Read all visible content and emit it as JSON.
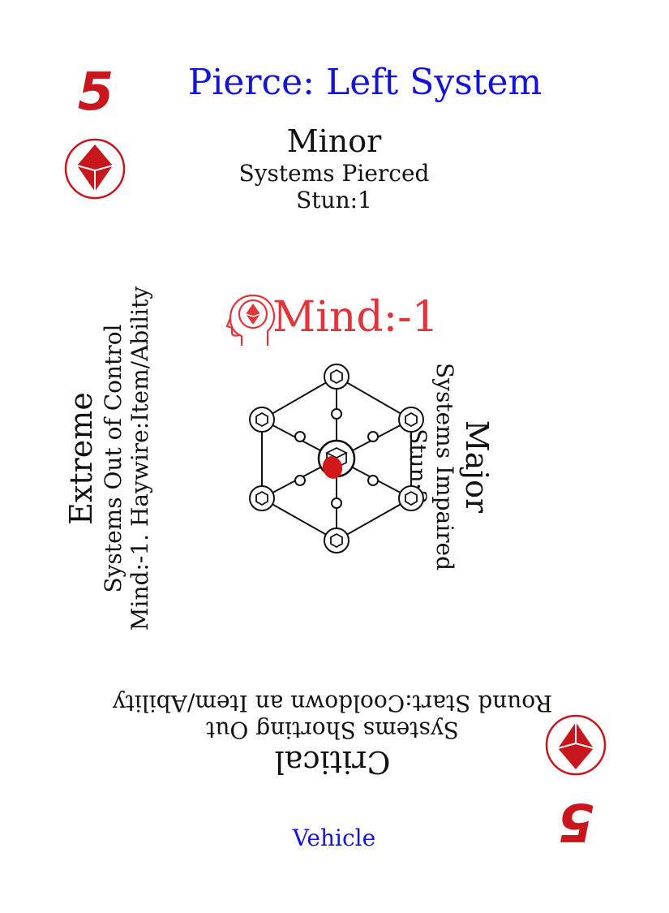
{
  "card": {
    "value": "5",
    "title": "Pierce: Left System",
    "type_label": "Vehicle",
    "suit_icon": "diamond-gem-icon",
    "accent_color": "#c8161d",
    "title_color": "#1414d6",
    "mind_color": "#e0353a"
  },
  "minor": {
    "severity": "Minor",
    "effect": "Systems Pierced",
    "detail": "Stun:1"
  },
  "major": {
    "severity": "Major",
    "effect": "Systems Impaired",
    "detail": "Stun:2"
  },
  "critical": {
    "severity": "Critical",
    "effect": "Systems Shorting Out",
    "detail": "Round Start:Cooldown an Item/Ability"
  },
  "extreme": {
    "severity": "Extreme",
    "effect": "Systems Out of Control",
    "detail": "Mind:-1. Haywire:Item/Ability"
  },
  "center": {
    "stat_text": "Mind:-1",
    "stat_icon": "mind-head-icon",
    "diagram_icon": "system-network-icon"
  }
}
